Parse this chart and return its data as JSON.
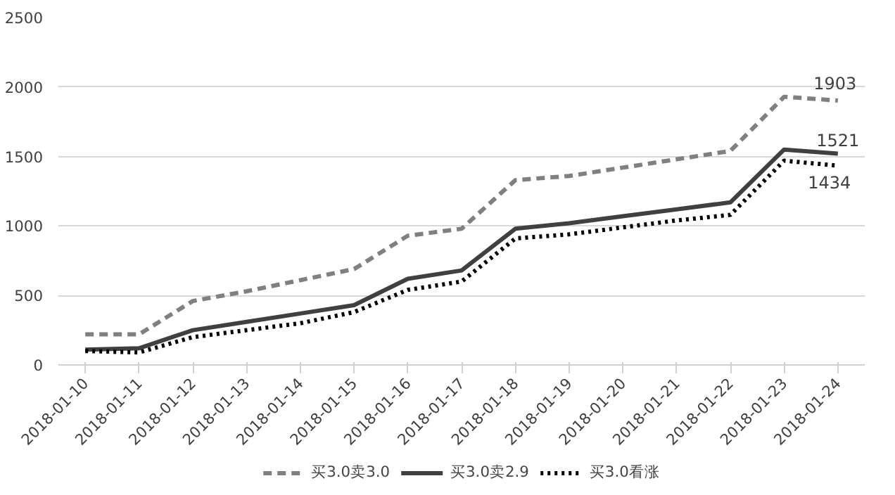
{
  "chart_data": {
    "type": "line",
    "categories": [
      "2018-01-10",
      "2018-01-11",
      "2018-01-12",
      "2018-01-13",
      "2018-01-14",
      "2018-01-15",
      "2018-01-16",
      "2018-01-17",
      "2018-01-18",
      "2018-01-19",
      "2018-01-20",
      "2018-01-21",
      "2018-01-22",
      "2018-01-23",
      "2018-01-24"
    ],
    "series": [
      {
        "name": "买3.0卖3.0",
        "color": "#808080",
        "line_style": "dashed",
        "values": [
          220,
          220,
          460,
          530,
          610,
          690,
          930,
          980,
          1330,
          1360,
          1420,
          1480,
          1540,
          1930,
          1903
        ],
        "value_labels": [
          null,
          null,
          null,
          null,
          null,
          null,
          null,
          null,
          null,
          null,
          null,
          null,
          null,
          null,
          "1903"
        ]
      },
      {
        "name": "买3.0卖2.9",
        "color": "#404040",
        "line_style": "solid",
        "values": [
          110,
          120,
          250,
          310,
          370,
          430,
          620,
          680,
          980,
          1020,
          1070,
          1120,
          1170,
          1550,
          1521
        ],
        "value_labels": [
          null,
          null,
          null,
          null,
          null,
          null,
          null,
          null,
          null,
          null,
          null,
          null,
          null,
          null,
          "1521"
        ]
      },
      {
        "name": "买3.0看涨",
        "color": "#000000",
        "line_style": "dotted",
        "values": [
          100,
          90,
          200,
          250,
          300,
          380,
          540,
          600,
          910,
          940,
          990,
          1040,
          1080,
          1470,
          1434
        ],
        "value_labels": [
          null,
          null,
          null,
          null,
          null,
          null,
          null,
          null,
          null,
          null,
          null,
          null,
          null,
          null,
          "1434"
        ]
      }
    ],
    "ylim": [
      0,
      2500
    ],
    "yticks": [
      0,
      500,
      1000,
      1500,
      2000,
      2500
    ],
    "grid": "y",
    "legend": "bottom",
    "marker": "none"
  }
}
